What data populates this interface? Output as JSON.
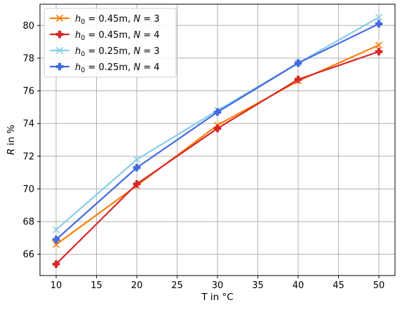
{
  "chart_data": {
    "type": "line",
    "xlabel": "T in °C",
    "ylabel_var": "R",
    "ylabel_rest": " in %",
    "x": [
      10,
      20,
      30,
      40,
      50
    ],
    "xlim": [
      8,
      52
    ],
    "ylim": [
      64.7,
      81.3
    ],
    "xticks": [
      10,
      15,
      20,
      25,
      30,
      35,
      40,
      45,
      50
    ],
    "yticks": [
      66,
      68,
      70,
      72,
      74,
      76,
      78,
      80
    ],
    "grid": true,
    "legend_position": "upper-left",
    "series": [
      {
        "h0": "0.45m",
        "N": "3",
        "marker": "x",
        "color": "#ff7f0e",
        "values": [
          66.6,
          70.2,
          73.9,
          76.6,
          78.8
        ]
      },
      {
        "h0": "0.45m",
        "N": "4",
        "marker": "plus",
        "color": "#d62728",
        "values": [
          65.4,
          70.3,
          73.7,
          76.7,
          78.4
        ]
      },
      {
        "h0": "0.25m",
        "N": "3",
        "marker": "x",
        "color": "#87ceeb",
        "values": [
          67.5,
          71.8,
          74.8,
          77.7,
          80.5
        ]
      },
      {
        "h0": "0.25m",
        "N": "4",
        "marker": "plus",
        "color": "#4169e1",
        "values": [
          66.9,
          71.3,
          74.7,
          77.7,
          80.1
        ]
      }
    ]
  }
}
